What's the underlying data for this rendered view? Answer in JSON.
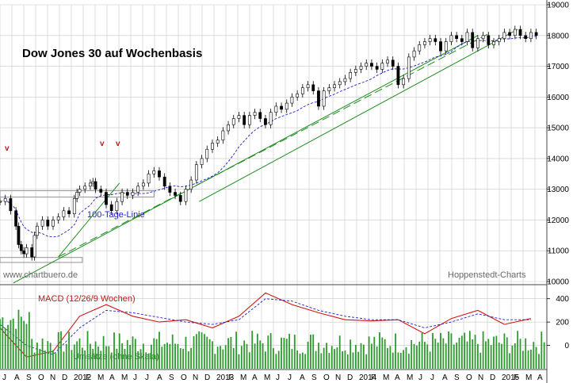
{
  "chart_data": [
    {
      "type": "candlestick",
      "title": "Dow Jones 30 auf Wochenbasis",
      "ylim": [
        10000,
        19000
      ],
      "yticks": [
        10000,
        11000,
        12000,
        13000,
        14000,
        15000,
        16000,
        17000,
        18000,
        19000
      ],
      "annotations": {
        "ma_label": "100-Tage-Linie",
        "source_left": "www.chartbuero.de",
        "source_right": "Hoppenstedt-Charts",
        "peak_markers": [
          "v",
          "v",
          "v"
        ]
      },
      "series": [
        {
          "name": "Dow Jones 30",
          "x": [
            0,
            2,
            4,
            6,
            7,
            8,
            9,
            10,
            12,
            13,
            14,
            16,
            18,
            20,
            22,
            24,
            26,
            28,
            29,
            30,
            32,
            34,
            35,
            36,
            38,
            40,
            42,
            44,
            46,
            48,
            50,
            52,
            54,
            56,
            58,
            60,
            62,
            64,
            66,
            68,
            70,
            72,
            74,
            76,
            78,
            80,
            82,
            84,
            86,
            88,
            90,
            92,
            94,
            96,
            98,
            100,
            102,
            104,
            106,
            108,
            110,
            112,
            114,
            116,
            118,
            120,
            122,
            124,
            126,
            128,
            130,
            132,
            134,
            136,
            138,
            140,
            142,
            144,
            146,
            148,
            150,
            152,
            154,
            156,
            158,
            160,
            162,
            164,
            166,
            168,
            170,
            172,
            174,
            176,
            178,
            180,
            182,
            184,
            186,
            188,
            190,
            192,
            194,
            196,
            198,
            200,
            202
          ],
          "y": [
            12600,
            12700,
            12300,
            11800,
            11200,
            11000,
            10900,
            11100,
            10800,
            11500,
            11800,
            12000,
            11800,
            12000,
            12100,
            12300,
            12200,
            12700,
            12900,
            13000,
            13100,
            13200,
            13250,
            13000,
            12900,
            12500,
            12300,
            12600,
            12900,
            12800,
            12900,
            13100,
            13200,
            13500,
            13600,
            13400,
            13100,
            12900,
            12800,
            12600,
            13000,
            13300,
            13800,
            14000,
            14300,
            14500,
            14600,
            14900,
            15100,
            15300,
            15400,
            15100,
            15400,
            15500,
            15300,
            15100,
            15500,
            15700,
            15600,
            15800,
            16000,
            16100,
            16300,
            16400,
            16200,
            15700,
            16200,
            16300,
            16400,
            16500,
            16600,
            16800,
            16900,
            17000,
            17100,
            17000,
            16900,
            17100,
            17200,
            17000,
            16400,
            16600,
            17300,
            17500,
            17700,
            17800,
            17900,
            17800,
            17500,
            17800,
            18000,
            17900,
            17800,
            18100,
            17600,
            17900,
            18000,
            17700,
            17800,
            17900,
            18100,
            18000,
            18200,
            18000,
            17900,
            18100,
            18000
          ]
        }
      ]
    },
    {
      "type": "line",
      "title": "MACD (12/26/9 Wochen)",
      "ylim": [
        -200,
        500
      ],
      "yticks": [
        0,
        200,
        400
      ],
      "series": [
        {
          "name": "MACD",
          "x": [
            0,
            10,
            20,
            30,
            40,
            50,
            60,
            70,
            80,
            90,
            100,
            110,
            120,
            130,
            140,
            150,
            160,
            170,
            180,
            190,
            200
          ],
          "y": [
            150,
            -100,
            -50,
            250,
            350,
            250,
            200,
            220,
            150,
            250,
            450,
            350,
            280,
            220,
            210,
            220,
            100,
            230,
            300,
            180,
            230
          ]
        },
        {
          "name": "Signal",
          "x": [
            0,
            10,
            20,
            30,
            40,
            50,
            60,
            70,
            80,
            90,
            100,
            110,
            120,
            130,
            140,
            150,
            160,
            170,
            180,
            190,
            200
          ],
          "y": [
            180,
            0,
            -80,
            150,
            300,
            280,
            240,
            200,
            180,
            220,
            400,
            380,
            300,
            250,
            220,
            220,
            150,
            200,
            270,
            220,
            220
          ]
        }
      ]
    },
    {
      "type": "bar",
      "title": "Umsätze (ohne Skala)",
      "xlabels": [
        "J",
        "A",
        "S",
        "O",
        "N",
        "D",
        "2012",
        "F",
        "M",
        "A",
        "M",
        "J",
        "J",
        "A",
        "S",
        "O",
        "N",
        "D",
        "2013",
        "F",
        "M",
        "A",
        "M",
        "J",
        "J",
        "A",
        "S",
        "O",
        "N",
        "D",
        "2014",
        "F",
        "M",
        "A",
        "M",
        "J",
        "J",
        "A",
        "S",
        "O",
        "N",
        "D",
        "2015",
        "F",
        "M",
        "A"
      ]
    }
  ],
  "colors": {
    "candle": "#000000",
    "ma": "#1f1fd0",
    "trend_green": "#1e8c1e",
    "macd": "#d01818",
    "signal": "#1f1fd0",
    "volume": "#2e9a2e",
    "grid": "#c8c8c8",
    "support_band": "#7a7a7a"
  }
}
